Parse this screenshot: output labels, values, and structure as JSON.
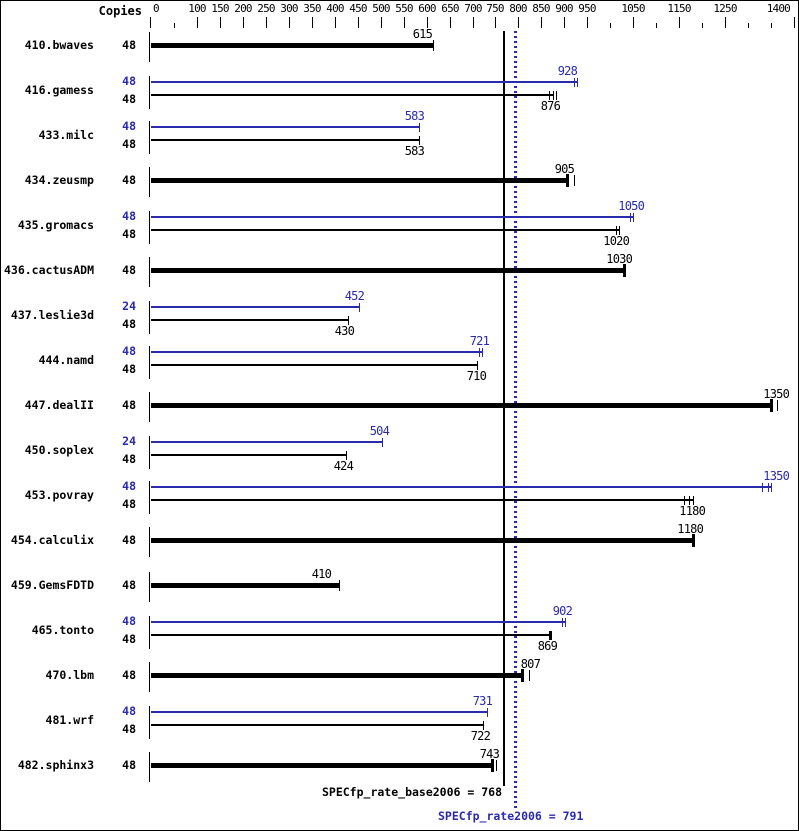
{
  "chart_data": {
    "type": "bar",
    "orientation": "horizontal",
    "copies_header": "Copies",
    "colors": {
      "base": "#000000",
      "peak": "#2a2aad"
    },
    "axis": {
      "min": 0,
      "max": 1400,
      "labeled_ticks": [
        0,
        100,
        150,
        200,
        250,
        300,
        350,
        400,
        450,
        500,
        550,
        600,
        650,
        700,
        750,
        800,
        850,
        900,
        950,
        1050,
        1150,
        1250,
        1400
      ],
      "unlabeled_ticks": [
        50,
        1000,
        1100,
        1200,
        1300,
        1350
      ]
    },
    "reference_lines": {
      "base": {
        "value": 768,
        "style": "solid"
      },
      "peak": {
        "value": 791,
        "style": "dotted"
      }
    },
    "footer": {
      "base": "SPECfp_rate_base2006 = 768",
      "peak": "SPECfp_rate2006 = 791"
    },
    "benchmarks": [
      {
        "name": "410.bwaves",
        "rows": [
          {
            "kind": "base",
            "copies": "48",
            "value": 615,
            "thick": true,
            "ticks": [
              0
            ],
            "label_dx": 1
          }
        ]
      },
      {
        "name": "416.gamess",
        "rows": [
          {
            "kind": "peak",
            "copies": "48",
            "value": 928,
            "ticks": [
              -3,
              0
            ],
            "label_dx": 2
          },
          {
            "kind": "base",
            "copies": "48",
            "value": 876,
            "ticks": [
              -4,
              0,
              3
            ]
          }
        ]
      },
      {
        "name": "433.milc",
        "rows": [
          {
            "kind": "peak",
            "copies": "48",
            "value": 583,
            "ticks": [
              0
            ],
            "label_dx": 7
          },
          {
            "kind": "base",
            "copies": "48",
            "value": 583,
            "ticks": [
              0
            ],
            "label_dx": 7
          }
        ]
      },
      {
        "name": "434.zeusmp",
        "rows": [
          {
            "kind": "base",
            "copies": "48",
            "value": 905,
            "thick": true,
            "cap": "thick",
            "ticks": [
              7
            ]
          }
        ]
      },
      {
        "name": "435.gromacs",
        "rows": [
          {
            "kind": "peak",
            "copies": "48",
            "value": 1050,
            "ticks": [
              -3,
              0
            ],
            "label_dx": 13
          },
          {
            "kind": "base",
            "copies": "48",
            "value": 1020,
            "ticks": [
              -3,
              0
            ]
          }
        ]
      },
      {
        "name": "436.cactusADM",
        "rows": [
          {
            "kind": "base",
            "copies": "48",
            "value": 1030,
            "thick": true,
            "cap": "thick",
            "ticks": [],
            "label_dx": 10
          }
        ]
      },
      {
        "name": "437.leslie3d",
        "rows": [
          {
            "kind": "peak",
            "copies": "24",
            "value": 452,
            "ticks": [
              0
            ],
            "label_dx": 7
          },
          {
            "kind": "base",
            "copies": "48",
            "value": 430,
            "ticks": [
              0
            ],
            "label_dx": 8
          }
        ]
      },
      {
        "name": "444.namd",
        "rows": [
          {
            "kind": "peak",
            "copies": "48",
            "value": 721,
            "ticks": [
              -3,
              0
            ]
          },
          {
            "kind": "base",
            "copies": "48",
            "value": 710,
            "ticks": [
              0
            ],
            "label_dx": 11
          }
        ]
      },
      {
        "name": "447.dealII",
        "rows": [
          {
            "kind": "base",
            "copies": "48",
            "value": 1350,
            "thick": true,
            "cap": "thick",
            "ticks": [
              6
            ],
            "label_dx": 20
          }
        ]
      },
      {
        "name": "450.soplex",
        "rows": [
          {
            "kind": "peak",
            "copies": "24",
            "value": 504,
            "ticks": [
              0
            ]
          },
          {
            "kind": "base",
            "copies": "48",
            "value": 424,
            "ticks": [
              0
            ]
          }
        ]
      },
      {
        "name": "453.povray",
        "rows": [
          {
            "kind": "peak",
            "copies": "48",
            "value": 1350,
            "ticks": [
              -9,
              -3,
              0
            ],
            "label_dx": 20
          },
          {
            "kind": "base",
            "copies": "48",
            "value": 1180,
            "ticks": [
              -9,
              -4,
              0
            ],
            "label_dx": 14
          }
        ]
      },
      {
        "name": "454.calculix",
        "rows": [
          {
            "kind": "base",
            "copies": "48",
            "value": 1180,
            "thick": true,
            "cap": "thick",
            "ticks": [],
            "label_dx": 12
          }
        ]
      },
      {
        "name": "459.GemsFDTD",
        "rows": [
          {
            "kind": "base",
            "copies": "48",
            "value": 410,
            "thick": true,
            "ticks": [
              0
            ],
            "label_dx": -6
          }
        ]
      },
      {
        "name": "465.tonto",
        "rows": [
          {
            "kind": "peak",
            "copies": "48",
            "value": 902,
            "ticks": [
              -3,
              0
            ]
          },
          {
            "kind": "base",
            "copies": "48",
            "value": 869,
            "cap": "thick",
            "ticks": []
          }
        ]
      },
      {
        "name": "470.lbm",
        "rows": [
          {
            "kind": "base",
            "copies": "48",
            "value": 807,
            "thick": true,
            "cap": "thick",
            "ticks": [
              7
            ],
            "label_dx": 20
          }
        ]
      },
      {
        "name": "481.wrf",
        "rows": [
          {
            "kind": "peak",
            "copies": "48",
            "value": 731,
            "ticks": [
              0
            ],
            "label_dx": 7
          },
          {
            "kind": "base",
            "copies": "48",
            "value": 722,
            "ticks": [
              0
            ]
          }
        ]
      },
      {
        "name": "482.sphinx3",
        "rows": [
          {
            "kind": "base",
            "copies": "48",
            "value": 743,
            "thick": true,
            "cap": "thick",
            "ticks": [
              4
            ]
          }
        ]
      }
    ]
  }
}
